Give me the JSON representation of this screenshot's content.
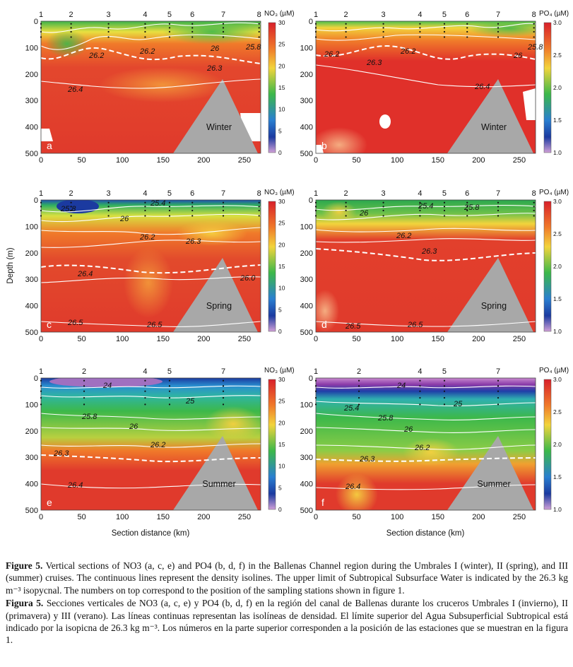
{
  "figure": {
    "y_axis_label": "Depth (m)",
    "x_axis_label": "Section distance (km)",
    "x_ticks": [
      "0",
      "50",
      "100",
      "150",
      "200",
      "250"
    ],
    "y_ticks": [
      "0",
      "100",
      "200",
      "300",
      "400",
      "500"
    ],
    "no3_colorbar": {
      "title": "NO₃ (µM)",
      "ticks": [
        "30",
        "25",
        "20",
        "15",
        "10",
        "5",
        "0"
      ]
    },
    "po4_colorbar": {
      "title": "PO₄ (µM)",
      "ticks": [
        "3.0",
        "2.5",
        "2.0",
        "1.5",
        "1.0"
      ]
    },
    "stations_full": [
      "1",
      "2",
      "3",
      "4",
      "5",
      "6",
      "7",
      "8"
    ],
    "stations_summer": [
      "1",
      "2",
      "4",
      "5",
      "7"
    ],
    "seasons": {
      "winter": "Winter",
      "spring": "Spring",
      "summer": "Summer"
    },
    "panels": [
      {
        "letter": "a",
        "season": "Winter",
        "variable": "NO3",
        "isolines": [
          "26.2",
          "26.2",
          "26",
          "25.8",
          "26.3",
          "26.4"
        ]
      },
      {
        "letter": "b",
        "season": "Winter",
        "variable": "PO4",
        "isolines": [
          "26.2",
          "26.3",
          "26.2",
          "26",
          "25.8",
          "26.4"
        ]
      },
      {
        "letter": "c",
        "season": "Spring",
        "variable": "NO3",
        "isolines": [
          "25.8",
          "25.4",
          "26",
          "26.2",
          "26.3",
          "26.4",
          "26.0",
          "26.5",
          "26.5"
        ]
      },
      {
        "letter": "d",
        "season": "Spring",
        "variable": "PO4",
        "isolines": [
          "26",
          "25.4",
          "25.8",
          "26.2",
          "26.3",
          "26.5",
          "26.5"
        ]
      },
      {
        "letter": "e",
        "season": "Summer",
        "variable": "NO3",
        "isolines": [
          "24",
          "25",
          "25.8",
          "26",
          "26.2",
          "26.3",
          "26.4"
        ]
      },
      {
        "letter": "f",
        "season": "Summer",
        "variable": "PO4",
        "isolines": [
          "24",
          "25",
          "25.4",
          "25.8",
          "26",
          "26.2",
          "26.3",
          "26.4"
        ]
      }
    ]
  },
  "caption": {
    "en_label": "Figure 5.",
    "en_text": " Vertical sections of NO3 (a, c, e) and PO4 (b, d, f) in the Ballenas Channel region during the Umbrales I (winter), II (spring), and III (summer) cruises. The continuous lines represent the density isolines. The upper limit of Subtropical Subsurface Water is indicated by the 26.3 kg m⁻³ isopycnal. The numbers on top correspond to the position of the sampling stations shown in figure 1.",
    "es_label": "Figura 5.",
    "es_text": " Secciones verticales de NO3 (a, c, e) y PO4 (b, d, f) en la región del canal de Ballenas durante los cruceros Umbrales I (invierno), II (primavera) y III (verano). Las líneas continuas representan las isolíneas de densidad. El límite superior del Agua Subsuperficial Subtropical está indicado por la isopicna de 26.3 kg m⁻³. Los números en la parte superior corresponden a la posición de las estaciones que se muestran en la figura 1."
  },
  "colors": {
    "red": "#e03a2c",
    "orange": "#f07a2a",
    "yellow": "#f2d43c",
    "green": "#3cb84a",
    "blue": "#1f5fb0",
    "purple": "#a76bc0",
    "seamount": "#a8a8a8"
  }
}
